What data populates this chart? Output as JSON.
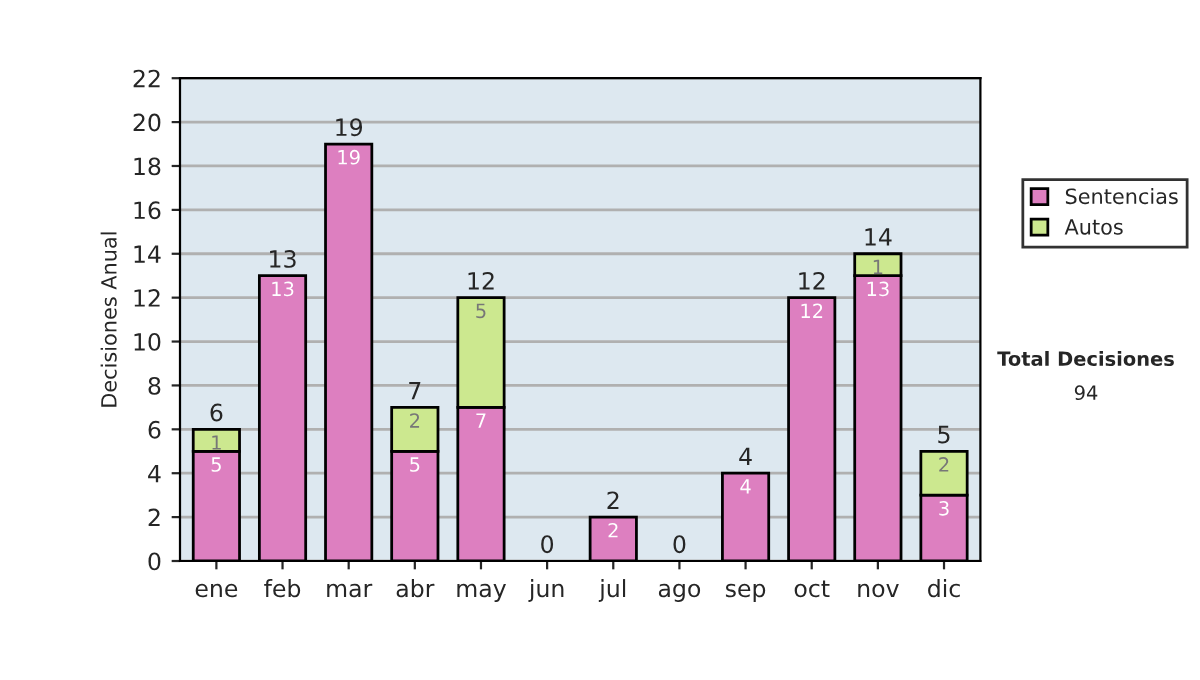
{
  "chart_data": {
    "type": "bar",
    "stacked": true,
    "ylabel": "Decisiones Anual",
    "categories": [
      "ene",
      "feb",
      "mar",
      "abr",
      "may",
      "jun",
      "jul",
      "ago",
      "sep",
      "oct",
      "nov",
      "dic"
    ],
    "series": [
      {
        "name": "Sentencias",
        "color": "#dd7fc0",
        "values": [
          5,
          13,
          19,
          5,
          7,
          0,
          2,
          0,
          4,
          12,
          13,
          3
        ],
        "value_labels": [
          "5",
          "13",
          "19",
          "5",
          "7",
          null,
          "2",
          null,
          "4",
          "12",
          "13",
          "3"
        ]
      },
      {
        "name": "Autos",
        "color": "#cce88f",
        "values": [
          1,
          0,
          0,
          2,
          5,
          0,
          0,
          0,
          0,
          0,
          1,
          2
        ],
        "value_labels": [
          "1",
          null,
          null,
          "2",
          "5",
          null,
          null,
          null,
          null,
          null,
          "1",
          "2"
        ]
      }
    ],
    "totals": [
      "6",
      "13",
      "19",
      "7",
      "12",
      "0",
      "2",
      "0",
      "4",
      "12",
      "14",
      "5"
    ],
    "ylim": [
      0,
      22
    ],
    "yticks": [
      0,
      2,
      4,
      6,
      8,
      10,
      12,
      14,
      16,
      18,
      20,
      22
    ],
    "grid": "y",
    "legend": "right",
    "annotations": [
      "Total Decisiones",
      "94"
    ]
  }
}
